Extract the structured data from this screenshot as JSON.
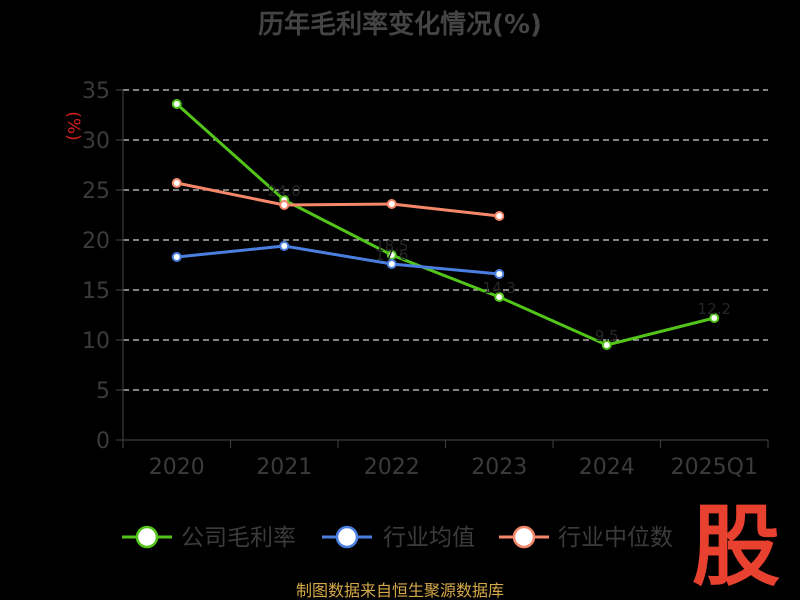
{
  "chart_data": {
    "type": "line",
    "title": "历年毛利率变化情况(%)",
    "ylabel": "(%)",
    "xlabel": "",
    "categories": [
      "2020",
      "2021",
      "2022",
      "2023",
      "2024",
      "2025Q1"
    ],
    "ylim": [
      0,
      35
    ],
    "yticks": [
      0,
      5,
      10,
      15,
      20,
      25,
      30,
      35
    ],
    "grid": "horizontal-dashed",
    "legend_position": "bottom",
    "series": [
      {
        "name": "公司毛利率",
        "color": "#52c41a",
        "values": [
          33.6,
          24.0,
          18.5,
          14.3,
          9.5,
          12.2
        ],
        "labels": [
          "",
          "24.0",
          "18.5",
          "14.3",
          "9.5",
          "12.2"
        ]
      },
      {
        "name": "行业均值",
        "color": "#4a7fe0",
        "values": [
          18.3,
          19.4,
          17.6,
          16.6,
          null,
          null
        ],
        "labels": [
          "",
          "",
          "17.6",
          "",
          "",
          ""
        ]
      },
      {
        "name": "行业中位数",
        "color": "#f5876a",
        "values": [
          25.7,
          23.5,
          23.6,
          22.4,
          null,
          null
        ],
        "labels": [
          "",
          "",
          "",
          "",
          "",
          ""
        ]
      }
    ]
  },
  "footer": {
    "source": "制图数据来自恒生聚源数据库",
    "logo_text": "股"
  }
}
